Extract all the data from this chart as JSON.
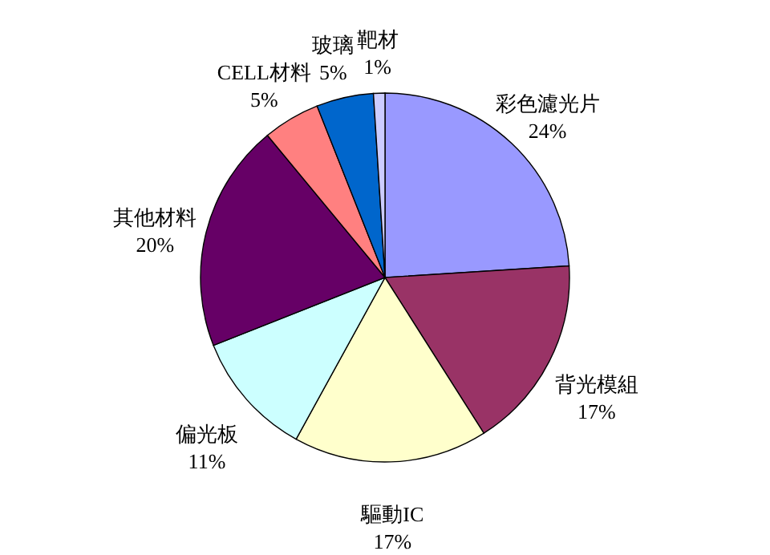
{
  "chart_data": {
    "type": "pie",
    "categories": [
      "彩色濾光片",
      "背光模組",
      "驅動IC",
      "偏光板",
      "其他材料",
      "CELL材料",
      "玻璃",
      "靶材"
    ],
    "values": [
      24,
      17,
      17,
      11,
      20,
      5,
      5,
      1
    ],
    "colors": [
      "#9999ff",
      "#993366",
      "#ffffcc",
      "#ccffff",
      "#660066",
      "#ff8080",
      "#0066cc",
      "#ccccff"
    ],
    "value_labels": [
      "24%",
      "17%",
      "17%",
      "11%",
      "20%",
      "5%",
      "5%",
      "1%"
    ]
  }
}
